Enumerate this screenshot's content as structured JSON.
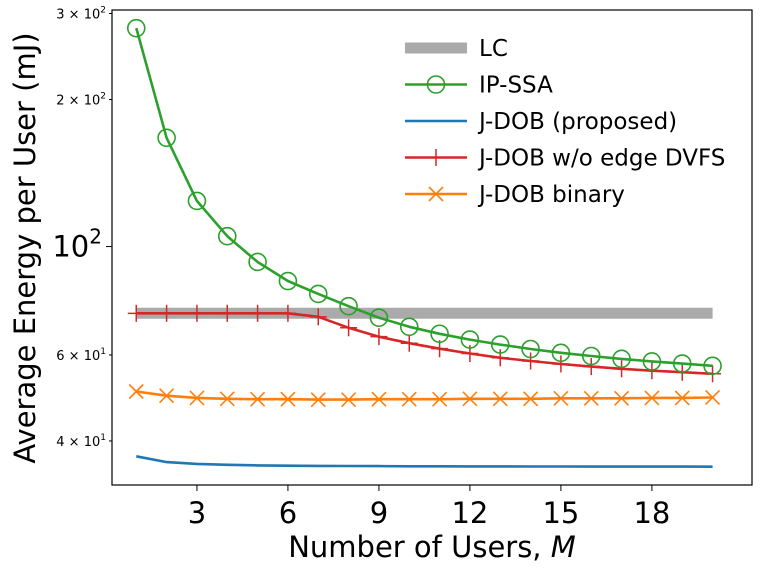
{
  "chart_data": {
    "type": "line",
    "xlabel": "Number of Users, M",
    "ylabel": "Average Energy per User (mJ)",
    "yscale": "log",
    "xlim": [
      0.2,
      21.3
    ],
    "ylim": [
      32.5,
      305
    ],
    "x_ticks": [
      3,
      6,
      9,
      12,
      15,
      18
    ],
    "x_tick_labels": [
      "3",
      "6",
      "9",
      "12",
      "15",
      "18"
    ],
    "y_ticks": [
      {
        "value": 40,
        "base": "4 × 10",
        "exp": "1",
        "size": "small"
      },
      {
        "value": 60,
        "base": "6 × 10",
        "exp": "1",
        "size": "small"
      },
      {
        "value": 100,
        "base": "10",
        "exp": "2",
        "size": "big"
      },
      {
        "value": 200,
        "base": "2 × 10",
        "exp": "2",
        "size": "small"
      },
      {
        "value": 300,
        "base": "3 × 10",
        "exp": "2",
        "size": "small"
      }
    ],
    "legend_position": "upper-right",
    "series": [
      {
        "name": "LC",
        "color": "#aaaaaa",
        "style": "thick",
        "marker": "none",
        "x": [
          1,
          20
        ],
        "values": [
          73,
          73
        ]
      },
      {
        "name": "IP-SSA",
        "color": "#2ca02c",
        "style": "line",
        "marker": "circle",
        "x": [
          1,
          2,
          3,
          4,
          5,
          6,
          7,
          8,
          9,
          10,
          11,
          12,
          13,
          14,
          15,
          16,
          17,
          18,
          19,
          20
        ],
        "values": [
          280,
          167,
          124,
          105,
          93,
          85,
          80,
          75.5,
          71.5,
          68.5,
          66.3,
          64.5,
          63,
          61.7,
          60.6,
          59.7,
          58.9,
          58.2,
          57.6,
          57
        ]
      },
      {
        "name": "J-DOB (proposed)",
        "color": "#1f77b4",
        "style": "line",
        "marker": "none",
        "x": [
          1,
          2,
          3,
          4,
          5,
          6,
          7,
          8,
          9,
          10,
          11,
          12,
          13,
          14,
          15,
          16,
          17,
          18,
          19,
          20
        ],
        "values": [
          37.2,
          36.2,
          35.9,
          35.75,
          35.65,
          35.6,
          35.57,
          35.54,
          35.52,
          35.5,
          35.49,
          35.48,
          35.47,
          35.46,
          35.46,
          35.45,
          35.45,
          35.44,
          35.44,
          35.43
        ]
      },
      {
        "name": "J-DOB w/o edge DVFS",
        "color": "#d62728",
        "style": "line",
        "marker": "plus",
        "x": [
          1,
          2,
          3,
          4,
          5,
          6,
          7,
          8,
          9,
          10,
          11,
          12,
          13,
          14,
          15,
          16,
          17,
          18,
          19,
          20
        ],
        "values": [
          73,
          73,
          73,
          73,
          73,
          73,
          71.8,
          68.2,
          65.4,
          63.4,
          61.8,
          60.4,
          59.2,
          58.3,
          57.5,
          56.8,
          56.2,
          55.7,
          55.3,
          54.9
        ]
      },
      {
        "name": "J-DOB binary",
        "color": "#ff7f0e",
        "style": "line",
        "marker": "x",
        "x": [
          1,
          2,
          3,
          4,
          5,
          6,
          7,
          8,
          9,
          10,
          11,
          12,
          13,
          14,
          15,
          16,
          17,
          18,
          19,
          20
        ],
        "values": [
          50.5,
          49.5,
          49.0,
          48.8,
          48.7,
          48.7,
          48.6,
          48.6,
          48.7,
          48.7,
          48.7,
          48.8,
          48.8,
          48.8,
          48.9,
          48.9,
          48.9,
          49.0,
          49.0,
          49.1
        ]
      }
    ]
  }
}
